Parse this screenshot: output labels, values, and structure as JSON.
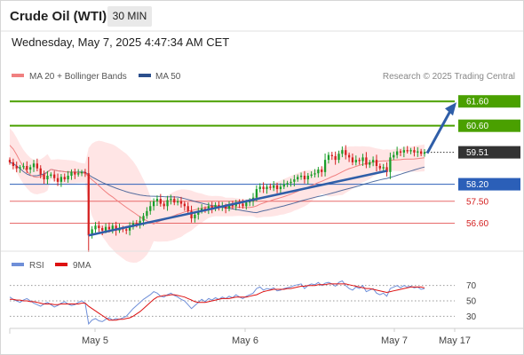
{
  "header": {
    "title": "Crude Oil (WTI)",
    "timeframe": "30 MIN",
    "datetime": "Wednesday, May 7, 2025 4:47:34 AM CET"
  },
  "legend": {
    "ma20": "MA 20 + Bollinger Bands",
    "ma50": "MA 50",
    "credit": "Research © 2025 Trading Central",
    "ma20_color": "#f08080",
    "ma50_color": "#2b4f8c"
  },
  "rsi_legend": {
    "rsi": "RSI",
    "ma9": "9MA",
    "rsi_color": "#6f8fd8",
    "ma9_color": "#dd1111"
  },
  "colors": {
    "up": "#1a9e2a",
    "down": "#d42020",
    "resistance": "#4aa000",
    "support": "#e86a6a",
    "pivot": "#2b5fb8",
    "current": "#333333",
    "band_fill": "#ffdcdc"
  },
  "chart_data": [
    {
      "type": "candlestick",
      "title": "Crude Oil (WTI)",
      "timeframe": "30 MIN",
      "x_ticks": [
        "May 5",
        "May 6",
        "May 7",
        "May 17"
      ],
      "ylim": [
        56.0,
        62.3
      ],
      "current_price": 59.51,
      "levels": [
        {
          "label": "61.60",
          "value": 61.6,
          "kind": "resistance"
        },
        {
          "label": "60.60",
          "value": 60.6,
          "kind": "resistance"
        },
        {
          "label": "59.51",
          "value": 59.51,
          "kind": "current"
        },
        {
          "label": "58.20",
          "value": 58.2,
          "kind": "pivot"
        },
        {
          "label": "57.50",
          "value": 57.5,
          "kind": "support"
        },
        {
          "label": "56.60",
          "value": 56.6,
          "kind": "support"
        }
      ],
      "close": [
        59.1,
        58.95,
        58.85,
        58.9,
        58.95,
        58.8,
        58.9,
        59.05,
        58.85,
        58.6,
        58.4,
        58.55,
        58.6,
        58.45,
        58.3,
        58.5,
        58.4,
        58.55,
        58.7,
        58.6,
        58.65,
        58.7,
        58.65,
        56.1,
        56.35,
        56.5,
        56.4,
        56.3,
        56.45,
        56.35,
        56.5,
        56.3,
        56.4,
        56.35,
        56.3,
        56.45,
        56.6,
        56.55,
        56.7,
        56.9,
        57.1,
        57.3,
        57.5,
        57.6,
        57.4,
        57.3,
        57.55,
        57.6,
        57.45,
        57.5,
        57.4,
        57.3,
        57.1,
        56.8,
        56.95,
        57.1,
        57.2,
        57.15,
        57.3,
        57.2,
        57.35,
        57.25,
        57.3,
        57.2,
        57.35,
        57.3,
        57.45,
        57.4,
        57.3,
        57.45,
        57.5,
        57.65,
        58.0,
        58.1,
        58.0,
        58.1,
        58.05,
        58.15,
        58.0,
        58.1,
        58.2,
        58.25,
        58.3,
        58.4,
        58.5,
        58.55,
        58.4,
        58.55,
        58.6,
        58.65,
        58.8,
        58.7,
        59.2,
        59.4,
        59.35,
        59.2,
        59.45,
        59.6,
        59.4,
        59.3,
        59.1,
        59.2,
        59.15,
        59.3,
        59.0,
        59.1,
        59.2,
        58.95,
        58.85,
        58.9,
        58.7,
        59.3,
        59.4,
        59.55,
        59.5,
        59.6,
        59.55,
        59.6,
        59.5,
        59.55,
        59.45,
        59.51
      ],
      "ma20_start": [
        59.8,
        59.7,
        59.5,
        59.2,
        58.9,
        58.6,
        58.25,
        57.9,
        57.6,
        57.4,
        57.25,
        57.2
      ],
      "ma50_start": [
        59.1,
        59.05,
        58.95,
        58.8,
        58.6,
        58.4,
        58.2,
        58.0,
        57.8,
        57.65,
        57.5,
        57.4
      ],
      "trendline": {
        "from_bar": 23,
        "to_bar": 110,
        "from": 56.1,
        "to": 58.75
      },
      "projection": {
        "from": 59.51,
        "to": 61.6
      },
      "title_label": ""
    },
    {
      "type": "line",
      "title": "RSI",
      "series": [
        {
          "name": "RSI",
          "values": [
            55,
            52,
            50,
            48,
            51,
            53,
            50,
            47,
            45,
            43,
            46,
            48,
            45,
            42,
            44,
            47,
            49,
            46,
            44,
            45,
            48,
            50,
            47,
            20,
            25,
            27,
            24,
            23,
            26,
            28,
            25,
            27,
            26,
            28,
            30,
            35,
            40,
            44,
            48,
            52,
            55,
            58,
            62,
            60,
            56,
            55,
            58,
            60,
            57,
            55,
            52,
            50,
            45,
            40,
            44,
            48,
            52,
            49,
            53,
            51,
            54,
            52,
            55,
            53,
            56,
            54,
            58,
            55,
            53,
            56,
            58,
            60,
            66,
            68,
            64,
            66,
            65,
            67,
            63,
            64,
            66,
            67,
            68,
            70,
            71,
            72,
            66,
            70,
            72,
            71,
            74,
            70,
            73,
            74,
            72,
            69,
            74,
            76,
            70,
            66,
            64,
            68,
            66,
            70,
            62,
            64,
            66,
            60,
            58,
            60,
            56,
            66,
            68,
            70,
            67,
            70,
            68,
            69,
            67,
            68,
            65,
            66
          ]
        },
        {
          "name": "9MA",
          "values": [
            52,
            52,
            51,
            51,
            50,
            50,
            49,
            49,
            48,
            47,
            46,
            46,
            46,
            45,
            45,
            46,
            46,
            46,
            46,
            46,
            46,
            47,
            47,
            43,
            40,
            37,
            34,
            31,
            28,
            25,
            25,
            25,
            26,
            26,
            27,
            28,
            30,
            33,
            36,
            40,
            44,
            48,
            52,
            55,
            56,
            57,
            57,
            58,
            58,
            57,
            56,
            55,
            53,
            51,
            49,
            48,
            48,
            48,
            49,
            50,
            51,
            52,
            53,
            53,
            53,
            54,
            55,
            55,
            55,
            55,
            56,
            57,
            58,
            60,
            62,
            63,
            64,
            65,
            65,
            65,
            65,
            66,
            66,
            67,
            68,
            69,
            69,
            70,
            70,
            70,
            71,
            71,
            71,
            72,
            72,
            72,
            72,
            72,
            72,
            71,
            70,
            69,
            68,
            67,
            66,
            66,
            65,
            64,
            63,
            62,
            61,
            62,
            63,
            64,
            65,
            66,
            67,
            68,
            68,
            68,
            68,
            67
          ]
        }
      ],
      "ylim": [
        20,
        80
      ],
      "y_ticks": [
        "70",
        "50",
        "30"
      ]
    }
  ]
}
